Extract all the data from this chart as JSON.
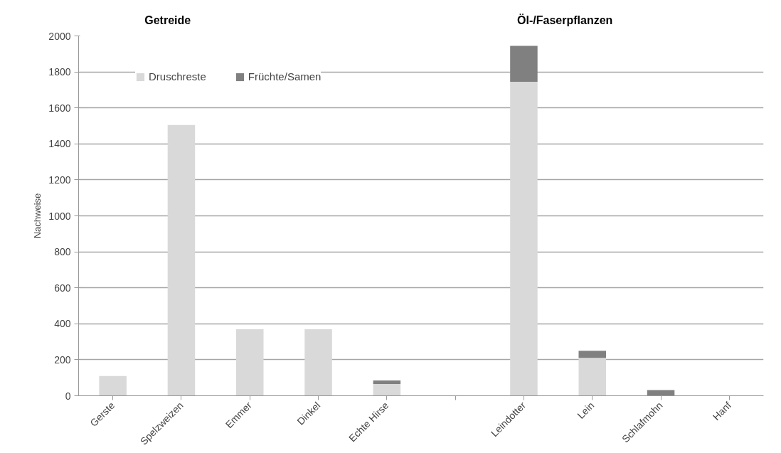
{
  "chart_data": {
    "type": "bar",
    "stacked": true,
    "ylabel": "Nachweise",
    "categories": [
      "Gerste",
      "Spelzweizen",
      "Emmer",
      "Dinkel",
      "Echte Hirse",
      null,
      "Leindotter",
      "Lein",
      "Schlafmohn",
      "Hanf"
    ],
    "series": [
      {
        "name": "Druschreste",
        "color": "#d9d9d9",
        "values": [
          110,
          1505,
          370,
          370,
          65,
          null,
          1745,
          210,
          0,
          0
        ]
      },
      {
        "name": "Früchte/Samen",
        "color": "#808080",
        "values": [
          0,
          0,
          0,
          0,
          20,
          null,
          200,
          40,
          32,
          0
        ]
      }
    ],
    "ylim": [
      0,
      2000
    ],
    "yticks": [
      0,
      200,
      400,
      600,
      800,
      1000,
      1200,
      1400,
      1600,
      1800,
      2000
    ],
    "grid": "y",
    "legend": "top left",
    "annotations": [
      "Getreide",
      "Öl-/Faserpflanzen"
    ]
  }
}
